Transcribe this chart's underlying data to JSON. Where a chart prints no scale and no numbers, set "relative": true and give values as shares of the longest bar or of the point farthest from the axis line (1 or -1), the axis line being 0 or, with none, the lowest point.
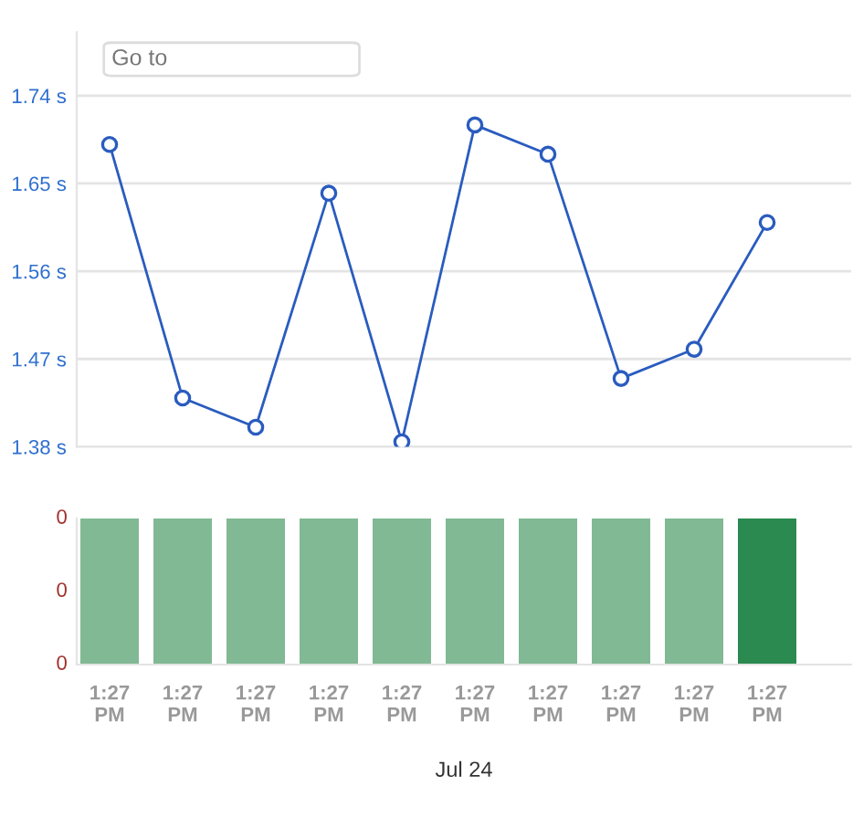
{
  "chart_data": [
    {
      "type": "line",
      "categories": [
        null,
        null,
        null,
        null,
        null,
        null,
        null,
        null,
        null,
        null
      ],
      "series": [
        {
          "color": "#2a5cbf",
          "values": [
            1.69,
            1.43,
            1.4,
            1.64,
            1.385,
            1.71,
            1.68,
            1.45,
            1.48,
            1.61
          ]
        }
      ],
      "ylim": [
        1.38,
        1.805
      ],
      "yticks": [
        {
          "value": 1.38,
          "label": "1.38 s"
        },
        {
          "value": 1.47,
          "label": "1.47 s"
        },
        {
          "value": 1.56,
          "label": "1.56 s"
        },
        {
          "value": 1.65,
          "label": "1.65 s"
        },
        {
          "value": 1.74,
          "label": "1.74 s"
        }
      ],
      "grid": "y",
      "marker": "circle",
      "line_style": "solid",
      "tick_labels": "y",
      "annotations": [
        "Go to"
      ]
    },
    {
      "type": "bar",
      "categories": [
        "1:27 PM",
        "1:27 PM",
        "1:27 PM",
        "1:27 PM",
        "1:27 PM",
        "1:27 PM",
        "1:27 PM",
        "1:27 PM",
        "1:27 PM",
        "1:27 PM"
      ],
      "values": [
        1,
        1,
        1,
        1,
        1,
        1,
        1,
        1,
        1,
        1
      ],
      "relative": true,
      "colors": [
        "#80b994",
        "#80b994",
        "#80b994",
        "#80b994",
        "#80b994",
        "#80b994",
        "#80b994",
        "#80b994",
        "#80b994",
        "#2a8a4f"
      ],
      "annotations": [
        "0",
        "0",
        "0"
      ],
      "xlabel": "Jul 24"
    }
  ]
}
